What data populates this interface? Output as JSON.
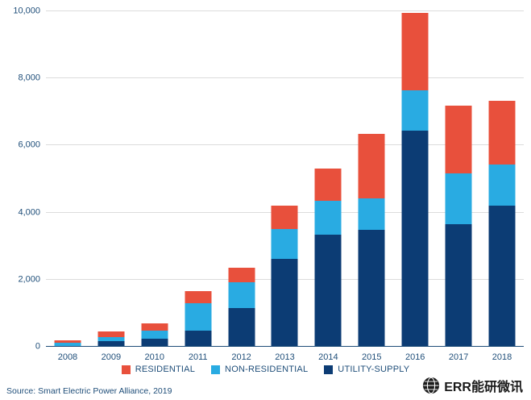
{
  "chart_data": {
    "type": "bar",
    "stacked": true,
    "title": "",
    "xlabel": "",
    "ylabel": "",
    "categories": [
      "2008",
      "2009",
      "2010",
      "2011",
      "2012",
      "2013",
      "2014",
      "2015",
      "2016",
      "2017",
      "2018"
    ],
    "series": [
      {
        "name": "UTILITY-SUPPLY",
        "color": "#0C3C74",
        "values": [
          30,
          160,
          250,
          480,
          1150,
          2620,
          3330,
          3480,
          6450,
          3650,
          4200
        ]
      },
      {
        "name": "NON-RESIDENTIAL",
        "color": "#29ABE2",
        "values": [
          90,
          120,
          240,
          820,
          770,
          880,
          1020,
          940,
          1200,
          1520,
          1240
        ]
      },
      {
        "name": "RESIDENTIAL",
        "color": "#E8503C",
        "values": [
          80,
          170,
          210,
          350,
          430,
          700,
          970,
          1930,
          2300,
          2030,
          1890
        ]
      }
    ],
    "ylim": [
      0,
      10000
    ],
    "ytick": 2000,
    "grid": true,
    "legend_position": "bottom"
  },
  "legend": [
    {
      "label": "RESIDENTIAL",
      "color": "#E8503C"
    },
    {
      "label": "NON-RESIDENTIAL",
      "color": "#29ABE2"
    },
    {
      "label": "UTILITY-SUPPLY",
      "color": "#0C3C74"
    }
  ],
  "source": {
    "text": "Source: Smart Electric Power Alliance, 2019"
  },
  "logo": {
    "text": "ERR能研微讯"
  },
  "colors": {
    "axis_text": "#1F4E79",
    "gridline": "#dcdcdc",
    "axis_line": "#1F4E79"
  }
}
